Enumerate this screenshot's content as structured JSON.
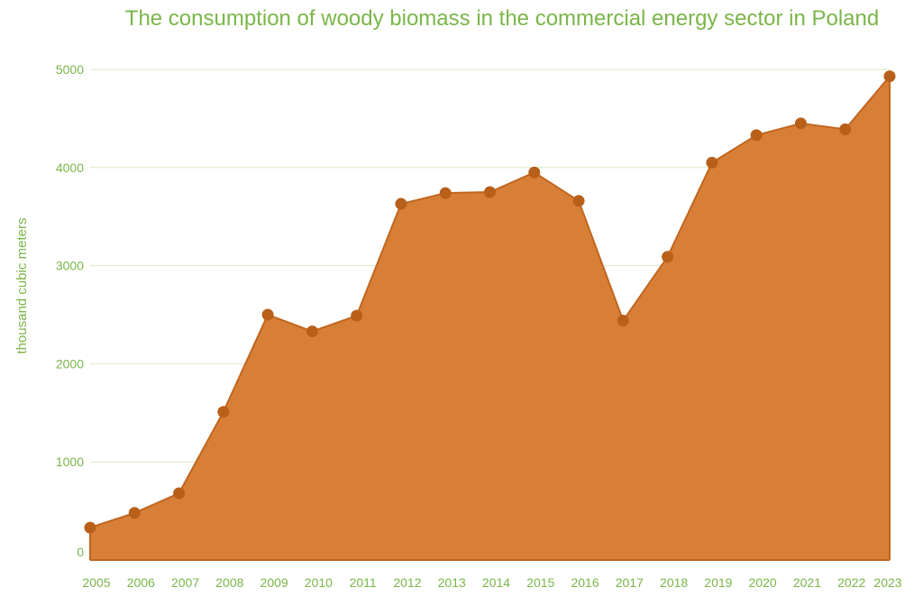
{
  "chart_data": {
    "type": "area",
    "title": "The consumption of woody biomass in the commercial energy sector in Poland",
    "xlabel": "",
    "ylabel": "thousand cubic meters",
    "categories": [
      "2005",
      "2006",
      "2007",
      "2008",
      "2009",
      "2010",
      "2011",
      "2012",
      "2013",
      "2014",
      "2015",
      "2016",
      "2017",
      "2018",
      "2019",
      "2020",
      "2021",
      "2022",
      "2023"
    ],
    "values": [
      330,
      480,
      680,
      1510,
      2500,
      2330,
      2490,
      3630,
      3740,
      3750,
      3950,
      3660,
      2440,
      3090,
      4050,
      4330,
      4450,
      4390,
      4930
    ],
    "y_ticks": [
      "0",
      "1000",
      "2000",
      "3000",
      "4000",
      "5000"
    ],
    "ylim": [
      0,
      5000
    ],
    "grid": true,
    "legend": "none"
  },
  "colors": {
    "title": "#7ab648",
    "axis_text": "#7ab648",
    "grid": "#dbe9c6",
    "area_fill": "#d87f37",
    "line": "#c0651f",
    "marker": "#b85f1a"
  }
}
